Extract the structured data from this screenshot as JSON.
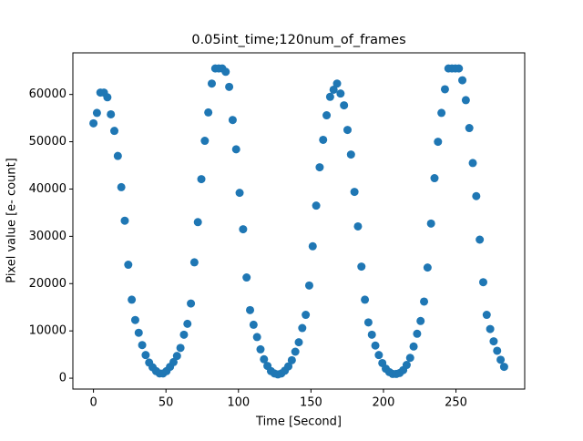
{
  "chart_data": {
    "type": "scatter",
    "title": "0.05int_time;120num_of_frames",
    "x_label": "Time [Second]",
    "y_label": "Pixel value [e- count]",
    "xlim": [
      -14.2,
      297.4
    ],
    "ylim": [
      -2300,
      68800
    ],
    "xticks": [
      0,
      50,
      100,
      150,
      200,
      250
    ],
    "yticks": [
      0,
      10000,
      20000,
      30000,
      40000,
      50000,
      60000
    ],
    "grid": false,
    "series": [
      {
        "color": "#1f77b4",
        "x": [
          0,
          2.4,
          4.8,
          7.2,
          9.6,
          12,
          14.4,
          16.8,
          19.2,
          21.6,
          24,
          26.4,
          28.8,
          31.2,
          33.6,
          36,
          38.4,
          40.8,
          43.2,
          45.6,
          48,
          50.4,
          52.8,
          55.2,
          57.6,
          60,
          62.4,
          64.8,
          67.2,
          69.6,
          72,
          74.4,
          76.8,
          79.2,
          81.6,
          84,
          86.4,
          88.8,
          91.2,
          93.6,
          96,
          98.4,
          100.8,
          103.2,
          105.6,
          108,
          110.4,
          112.8,
          115.2,
          117.6,
          120,
          122.4,
          124.8,
          127.2,
          129.6,
          132,
          134.4,
          136.8,
          139.2,
          141.6,
          144,
          146.4,
          148.8,
          151.2,
          153.6,
          156,
          158.4,
          160.8,
          163.2,
          165.6,
          168,
          170.4,
          172.8,
          175.2,
          177.6,
          180,
          182.4,
          184.8,
          187.2,
          189.6,
          192,
          194.4,
          196.8,
          199.2,
          201.6,
          204,
          206.4,
          208.8,
          211.2,
          213.6,
          216,
          218.4,
          220.8,
          223.2,
          225.6,
          228,
          230.4,
          232.8,
          235.2,
          237.6,
          240,
          242.4,
          244.8,
          247.2,
          249.6,
          252,
          254.4,
          256.8,
          259.2,
          261.6,
          264,
          266.4,
          268.8,
          271.2,
          273.6,
          276,
          278.4,
          280.8,
          283.2
        ],
        "values": [
          53900,
          56100,
          60400,
          60400,
          59400,
          55800,
          52300,
          47000,
          40400,
          33300,
          24000,
          16600,
          12300,
          9600,
          7000,
          4900,
          3300,
          2300,
          1500,
          1000,
          1000,
          1500,
          2400,
          3400,
          4700,
          6400,
          9200,
          11500,
          15800,
          24500,
          33000,
          42100,
          50200,
          56200,
          62300,
          65500,
          65500,
          65500,
          64800,
          61600,
          54600,
          48400,
          39200,
          31500,
          21300,
          14400,
          11300,
          8700,
          6100,
          4000,
          2600,
          1500,
          1000,
          800,
          1000,
          1600,
          2500,
          3800,
          5600,
          7600,
          10600,
          13400,
          19600,
          27900,
          36500,
          44600,
          50400,
          55600,
          59500,
          61000,
          62300,
          60200,
          57700,
          52500,
          47300,
          39400,
          32100,
          23600,
          16600,
          11800,
          9200,
          6900,
          4900,
          3200,
          2000,
          1300,
          900,
          900,
          1100,
          1700,
          2800,
          4300,
          6700,
          9400,
          12100,
          16200,
          23400,
          32700,
          42300,
          50000,
          56100,
          61100,
          65500,
          65500,
          65500,
          65500,
          63000,
          58800,
          52900,
          45500,
          38500,
          29300,
          20300,
          13400,
          10400,
          7800,
          5800,
          3900,
          2400
        ]
      }
    ]
  }
}
